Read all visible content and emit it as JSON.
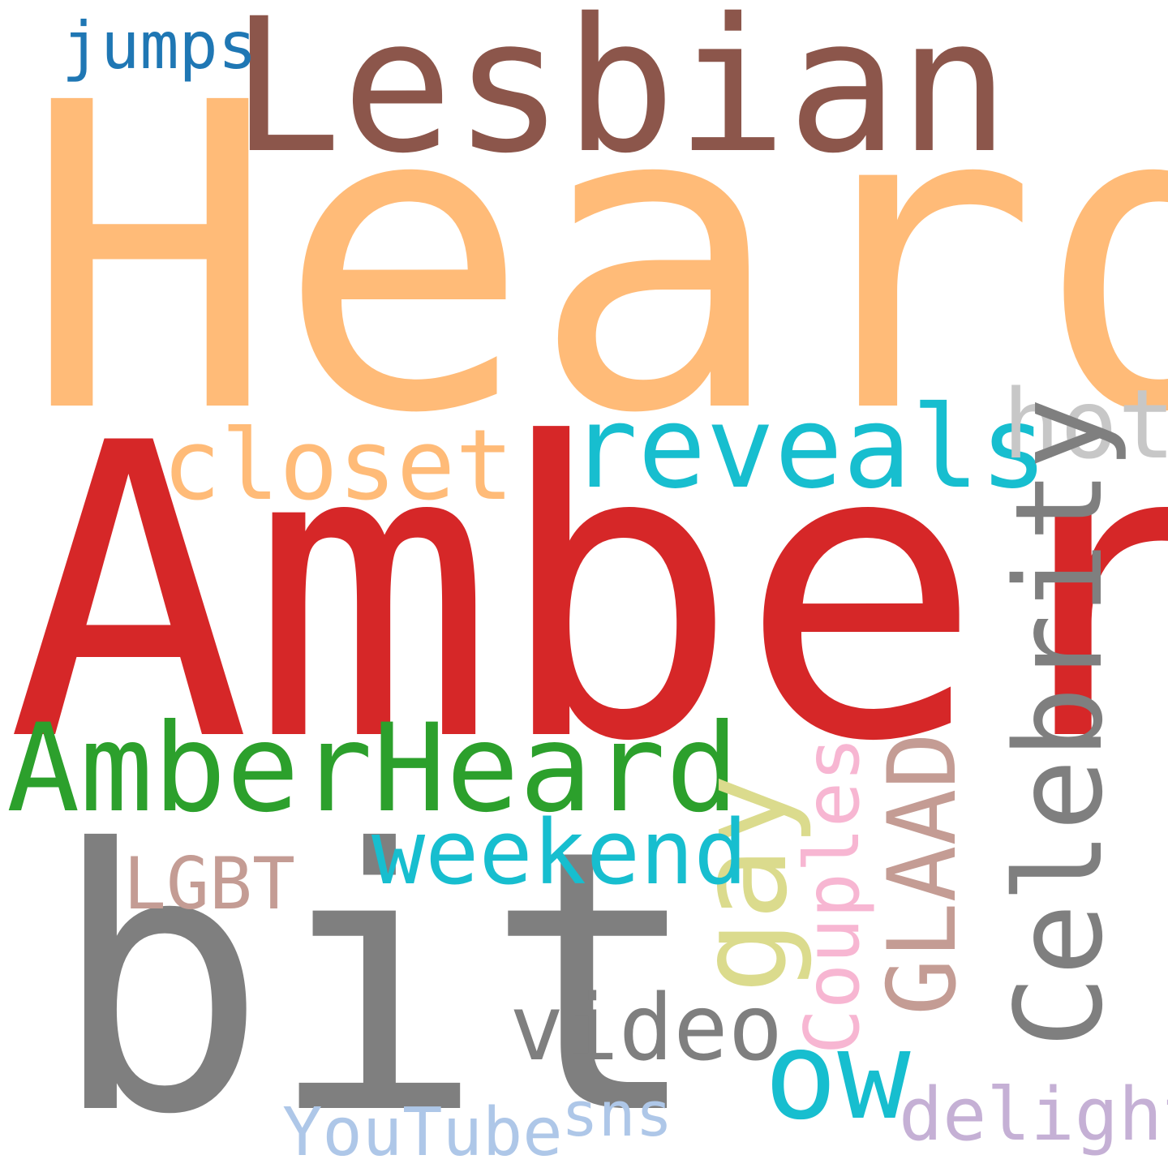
{
  "cloud": {
    "background": "#ffffff",
    "words": [
      {
        "text": "Heard",
        "color": "#ffbb78"
      },
      {
        "text": "Amber",
        "color": "#d62728"
      },
      {
        "text": "Lesbian",
        "color": "#8c564b"
      },
      {
        "text": "bit",
        "color": "#7f7f7f"
      },
      {
        "text": "AmberHeard",
        "color": "#2ca02c"
      },
      {
        "text": "reveals",
        "color": "#17becf"
      },
      {
        "text": "closet",
        "color": "#ffbb78"
      },
      {
        "text": "hot",
        "color": "#c7c7c7"
      },
      {
        "text": "jumps",
        "color": "#1f77b4"
      },
      {
        "text": "Celebrity",
        "color": "#7f7f7f"
      },
      {
        "text": "gay",
        "color": "#dbdb8d"
      },
      {
        "text": "Couples",
        "color": "#f7b6d2"
      },
      {
        "text": "GLAAD",
        "color": "#c49c94"
      },
      {
        "text": "weekend",
        "color": "#17becf"
      },
      {
        "text": "LGBT",
        "color": "#c49c94"
      },
      {
        "text": "video",
        "color": "#7f7f7f"
      },
      {
        "text": "ow",
        "color": "#17becf"
      },
      {
        "text": "delight",
        "color": "#c5b0d5"
      },
      {
        "text": "sns",
        "color": "#aec7e8"
      },
      {
        "text": "YouTube",
        "color": "#aec7e8"
      }
    ]
  }
}
